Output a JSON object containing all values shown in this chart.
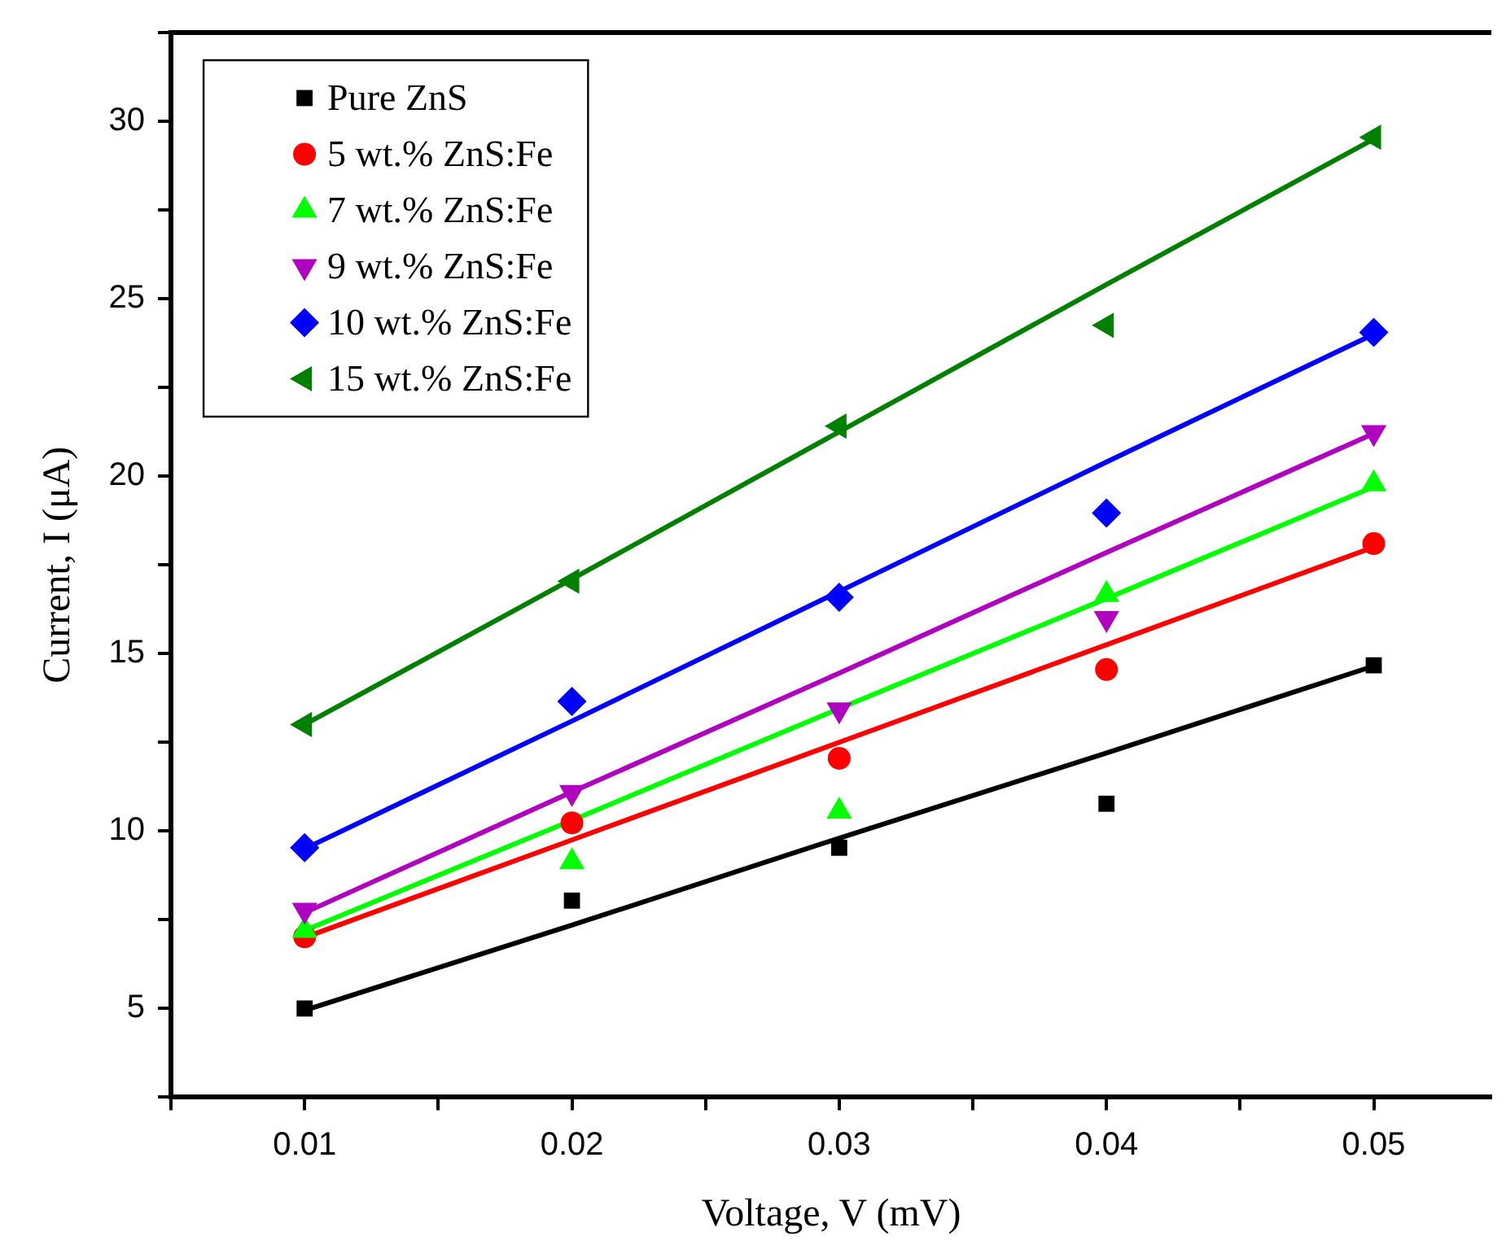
{
  "chart_data": {
    "type": "scatter",
    "xlabel": "Voltage, V (mV)",
    "ylabel": "Current, I (μA)",
    "xlim": [
      0.005,
      0.0544
    ],
    "ylim": [
      2.5,
      32.5
    ],
    "xticks": [
      {
        "value": 0.005,
        "label": null
      },
      0.01,
      {
        "value": 0.015,
        "label": null
      },
      0.02,
      {
        "value": 0.025,
        "label": null
      },
      0.03,
      {
        "value": 0.035,
        "label": null
      },
      0.04,
      {
        "value": 0.045,
        "label": null
      },
      0.05
    ],
    "yticks": [
      {
        "value": 2.5,
        "label": null
      },
      5,
      {
        "value": 7.5,
        "label": null
      },
      10,
      {
        "value": 12.5,
        "label": null
      },
      15,
      {
        "value": 17.5,
        "label": null
      },
      20,
      {
        "value": 22.5,
        "label": null
      },
      25,
      {
        "value": 27.5,
        "label": null
      },
      30,
      {
        "value": 32.5,
        "label": null
      }
    ],
    "grid": false,
    "legend": "top left",
    "x": [
      0.01,
      0.02,
      0.03,
      0.04,
      0.05
    ],
    "series": [
      {
        "name": "Pure ZnS",
        "color": "#000000",
        "marker": "square",
        "values": [
          5.0,
          8.04,
          9.53,
          10.77,
          14.67
        ]
      },
      {
        "name": "5 wt.% ZnS:Fe",
        "color": "#ff0000",
        "marker": "circle",
        "values": [
          7.02,
          10.23,
          12.05,
          14.55,
          18.1
        ]
      },
      {
        "name": "7 wt.% ZnS:Fe",
        "color": "#00ff00",
        "marker": "triangle",
        "values": [
          7.2,
          9.13,
          10.56,
          16.66,
          19.78
        ]
      },
      {
        "name": "9 wt.% ZnS:Fe",
        "color": "#b000c0",
        "marker": "triangle-down",
        "values": [
          7.77,
          11.09,
          13.42,
          15.99,
          21.23
        ]
      },
      {
        "name": "10 wt.% ZnS:Fe",
        "color": "#0000ff",
        "marker": "diamond",
        "values": [
          9.53,
          13.65,
          16.59,
          18.96,
          24.05
        ]
      },
      {
        "name": "15 wt.% ZnS:Fe",
        "color": "#008000",
        "marker": "triangle-left",
        "values": [
          13.0,
          17.04,
          21.41,
          24.25,
          29.55
        ]
      },
      {
        "type": "line",
        "color": "#000000",
        "marker": "none",
        "values": [
          4.95,
          7.35,
          9.8,
          12.2,
          14.65
        ]
      },
      {
        "type": "line",
        "color": "#ff0000",
        "marker": "none",
        "values": [
          7.0,
          9.75,
          12.5,
          15.25,
          18.0
        ]
      },
      {
        "type": "line",
        "color": "#00ff00",
        "marker": "none",
        "values": [
          7.2,
          10.3,
          13.45,
          16.55,
          19.7
        ]
      },
      {
        "type": "line",
        "color": "#b000c0",
        "marker": "none",
        "values": [
          7.7,
          11.1,
          14.45,
          17.85,
          21.2
        ]
      },
      {
        "type": "line",
        "color": "#0000ff",
        "marker": "none",
        "values": [
          9.5,
          13.1,
          16.75,
          20.4,
          24.0
        ]
      },
      {
        "type": "line",
        "color": "#008000",
        "marker": "none",
        "values": [
          13.0,
          17.1,
          21.25,
          25.4,
          29.5
        ]
      }
    ]
  }
}
